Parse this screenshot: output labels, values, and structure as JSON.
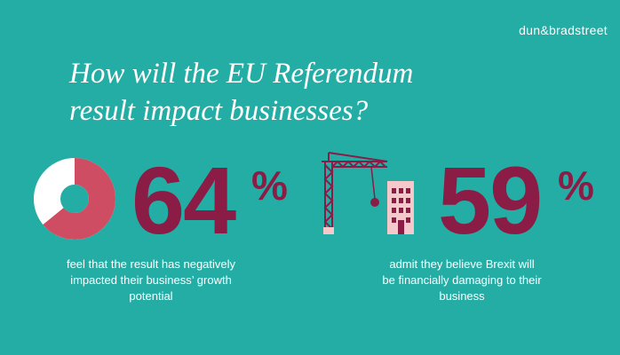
{
  "brand": {
    "logo_text": "dun&bradstreet"
  },
  "headline": {
    "line1": "How will the EU Referendum",
    "line2": "result impact businesses?"
  },
  "stats": [
    {
      "value": "64",
      "unit": "%",
      "fraction": 0.64,
      "caption_line1": "feel that the result has negatively",
      "caption_line2": "impacted their business’ growth",
      "caption_line3": "potential",
      "graphic": "donut-chart-icon"
    },
    {
      "value": "59",
      "unit": "%",
      "caption_line1": "admit they believe Brexit will",
      "caption_line2": "be financially damaging to their",
      "caption_line3": "business",
      "graphic": "crane-building-icon"
    }
  ],
  "colors": {
    "background": "#24ada4",
    "accent": "#8b1c45",
    "donut_fill": "#cf4d63",
    "donut_rest": "#ffffff",
    "building": "#f5c9cc"
  }
}
